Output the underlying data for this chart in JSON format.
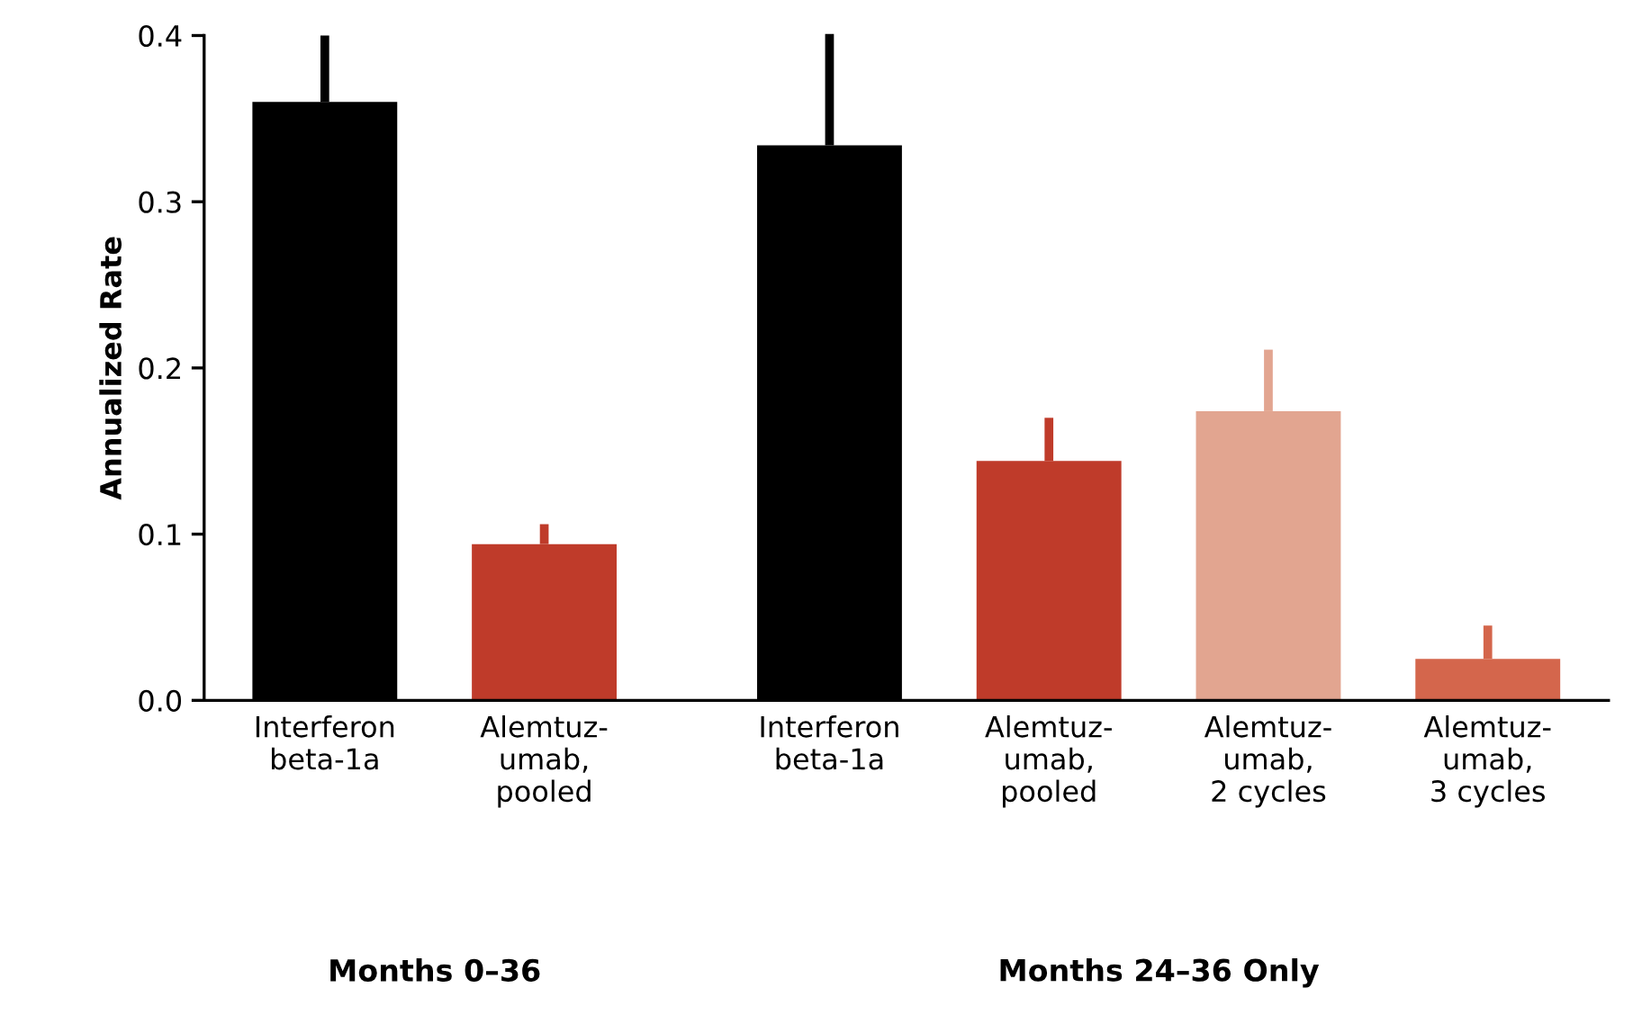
{
  "chart_data": {
    "type": "bar",
    "ylabel": "Annualized Rate",
    "categories": [
      "Interferon\nbeta-1a",
      "Alemtuz-\numab,\npooled",
      "Interferon\nbeta-1a",
      "Alemtuz-\numab,\npooled",
      "Alemtuz-\numab,\n2 cycles",
      "Alemtuz-\numab,\n3 cycles"
    ],
    "values": [
      0.36,
      0.094,
      0.334,
      0.144,
      0.174,
      0.025
    ],
    "errors": [
      [
        0.36,
        0.4
      ],
      [
        0.094,
        0.106
      ],
      [
        0.334,
        0.401
      ],
      [
        0.144,
        0.17
      ],
      [
        0.174,
        0.211
      ],
      [
        0.025,
        0.045
      ]
    ],
    "colors": [
      "#000000",
      "#bf3b2a",
      "#000000",
      "#bf3b2a",
      "#e2a590",
      "#d4664c"
    ],
    "ylim": [
      0,
      0.4
    ],
    "yticks": [
      {
        "value": 0,
        "label": "0.0"
      },
      {
        "value": 0.1,
        "label": "0.1"
      },
      {
        "value": 0.2,
        "label": "0.2"
      },
      {
        "value": 0.3,
        "label": "0.3"
      },
      {
        "value": 0.4,
        "label": "0.4"
      }
    ],
    "grid": false,
    "annotations": [
      "Months 0–36",
      "Months 24–36 Only"
    ]
  }
}
